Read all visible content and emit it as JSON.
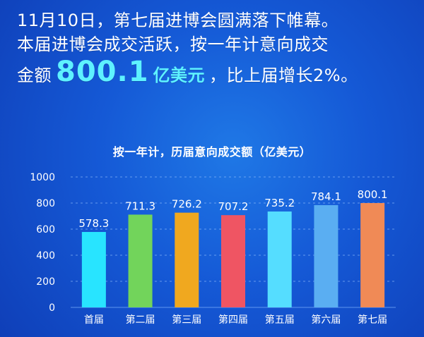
{
  "headline": {
    "line1": "11月10日，第七届进博会圆满落下帷幕。",
    "line2": "本届进博会成交活跃，按一年计意向成交",
    "line3_prefix": "金额",
    "line3_amount": "800.1",
    "line3_unit": "亿美元",
    "line3_suffix": "，比上届增长2%。"
  },
  "colors": {
    "background": "#1559d6",
    "highlight": "#5ef2ff",
    "gridline": "#9cc7ff"
  },
  "chart_data": {
    "type": "bar",
    "title": "按一年计，历届意向成交额（亿美元）",
    "categories": [
      "首届",
      "第二届",
      "第三届",
      "第四届",
      "第五届",
      "第六届",
      "第七届"
    ],
    "values": [
      578.3,
      711.3,
      726.2,
      707.2,
      735.2,
      784.1,
      800.1
    ],
    "bar_colors": [
      "#28e4ff",
      "#72d45b",
      "#f0a81f",
      "#ef5563",
      "#55ddff",
      "#5aaef2",
      "#f08a56"
    ],
    "ylim": [
      0,
      1000
    ],
    "yticks": [
      0,
      200,
      400,
      600,
      800,
      1000
    ],
    "grid": true,
    "xlabel": "",
    "ylabel": ""
  }
}
